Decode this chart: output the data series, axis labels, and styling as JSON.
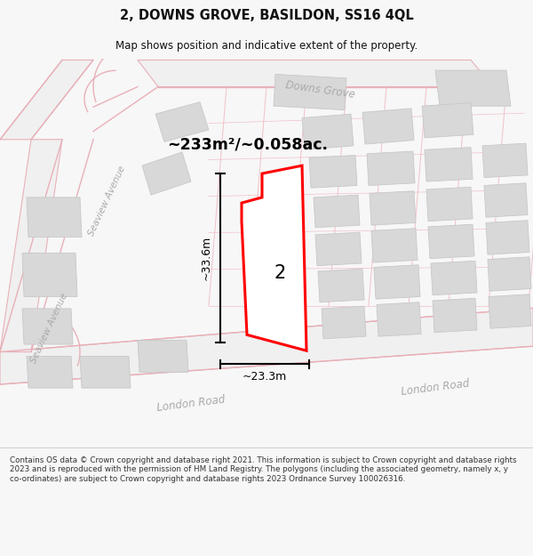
{
  "title": "2, DOWNS GROVE, BASILDON, SS16 4QL",
  "subtitle": "Map shows position and indicative extent of the property.",
  "area_label": "~233m²/~0.058ac.",
  "property_number": "2",
  "dim_width": "~23.3m",
  "dim_height": "~33.6m",
  "footer": "Contains OS data © Crown copyright and database right 2021. This information is subject to Crown copyright and database rights 2023 and is reproduced with the permission of HM Land Registry. The polygons (including the associated geometry, namely x, y co-ordinates) are subject to Crown copyright and database rights 2023 Ordnance Survey 100026316.",
  "bg_color": "#f7f7f7",
  "map_bg": "#f7f7f7",
  "road_color": "#e8b0b8",
  "building_fill": "#d8d8d8",
  "building_edge": "#c8c8c8",
  "property_fill": "#ffffff",
  "property_edge": "#ff0000",
  "road_label_color": "#b0b0b0",
  "title_color": "#000000",
  "grid_line_color": "#f0c0c8"
}
